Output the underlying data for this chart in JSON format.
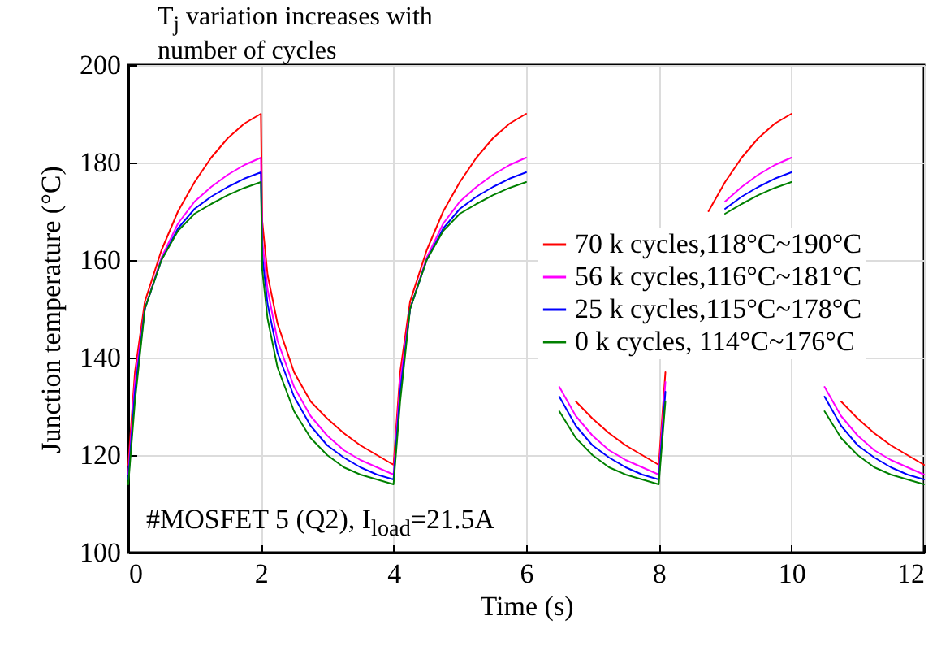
{
  "chart_data": {
    "type": "line",
    "xlabel": "Time (s)",
    "ylabel": "Junction temperature (°C)",
    "annotations": [
      "T$_{j}$ variation increases with number of cycles",
      "#MOSFET 5 (Q2), I$_{load}$=21.5A"
    ],
    "x": [
      0,
      0.1,
      0.25,
      0.5,
      0.75,
      1,
      1.25,
      1.5,
      1.75,
      2,
      2.02,
      2.1,
      2.25,
      2.5,
      2.75,
      3,
      3.25,
      3.5,
      3.75,
      4,
      4.1,
      4.25,
      4.5,
      4.75,
      5,
      5.25,
      5.5,
      5.75,
      6,
      6.02,
      6.1,
      6.25,
      6.5,
      6.75,
      7,
      7.25,
      7.5,
      7.75,
      8,
      8.1,
      8.25,
      8.5,
      8.75,
      9,
      9.25,
      9.5,
      9.75,
      10,
      10.02,
      10.1,
      10.25,
      10.5,
      10.75,
      11,
      11.25,
      11.5,
      11.75,
      12
    ],
    "series": [
      {
        "name": "70 k cycles,118°C~190°C",
        "color": "#ff0000",
        "values": [
          118,
          137,
          151.5,
          162,
          170,
          176,
          181,
          185,
          188,
          190,
          168,
          157,
          147,
          137,
          131,
          127.5,
          124.5,
          122,
          120,
          118,
          137,
          151.5,
          162,
          170,
          176,
          181,
          185,
          188,
          190,
          null,
          null,
          null,
          null,
          131,
          127.5,
          124.5,
          122,
          120,
          118,
          137,
          null,
          null,
          170,
          176,
          181,
          185,
          188,
          190,
          null,
          null,
          null,
          null,
          131,
          127.5,
          124.5,
          122,
          120,
          118
        ]
      },
      {
        "name": "56 k cycles,116°C~181°C",
        "color": "#ff00ff",
        "values": [
          116,
          135,
          150,
          160.5,
          167.5,
          172,
          175,
          177.5,
          179.5,
          181,
          164,
          154,
          143.5,
          134,
          128,
          124,
          121,
          119,
          117.5,
          116,
          135,
          150,
          160.5,
          167.5,
          172,
          175,
          177.5,
          179.5,
          181,
          null,
          null,
          null,
          134,
          128,
          124,
          121,
          119,
          117.5,
          116,
          135,
          null,
          null,
          null,
          172,
          175,
          177.5,
          179.5,
          181,
          null,
          null,
          null,
          134,
          128,
          124,
          121,
          119,
          117.5,
          116
        ]
      },
      {
        "name": "25 k cycles,115°C~178°C",
        "color": "#0000ff",
        "values": [
          115,
          133,
          150,
          160,
          166.5,
          170.5,
          173,
          175,
          176.7,
          178,
          161,
          151,
          141,
          132,
          126,
          122,
          119.5,
          117.5,
          116,
          115,
          133,
          150,
          160,
          166.5,
          170.5,
          173,
          175,
          176.7,
          178,
          null,
          null,
          null,
          132,
          126,
          122,
          119.5,
          117.5,
          116,
          115,
          133,
          null,
          null,
          null,
          170.5,
          173,
          175,
          176.7,
          178,
          null,
          null,
          null,
          132,
          126,
          122,
          119.5,
          117.5,
          116,
          115
        ]
      },
      {
        "name": "0 k cycles,  114°C~176°C",
        "color": "#008000",
        "values": [
          114,
          131,
          150,
          160,
          166,
          169.5,
          171.5,
          173.3,
          174.8,
          176,
          158,
          148,
          138,
          129,
          123.5,
          120,
          117.5,
          116,
          115,
          114,
          131,
          150,
          160,
          166,
          169.5,
          171.5,
          173.3,
          174.8,
          176,
          null,
          null,
          null,
          129,
          123.5,
          120,
          117.5,
          116,
          115,
          114,
          131,
          null,
          null,
          null,
          169.5,
          171.5,
          173.3,
          174.8,
          176,
          null,
          null,
          null,
          129,
          123.5,
          120,
          117.5,
          116,
          115,
          114
        ]
      }
    ],
    "xlim": [
      0,
      12
    ],
    "xticks": [
      0,
      2,
      4,
      6,
      8,
      10,
      12
    ],
    "ylim": [
      100,
      200
    ],
    "yticks": [
      100,
      120,
      140,
      160,
      180,
      200
    ],
    "grid": true,
    "legend": "right"
  }
}
